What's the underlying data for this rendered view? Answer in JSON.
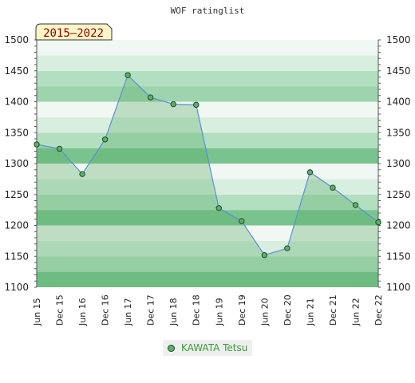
{
  "chart_data": {
    "type": "area",
    "title": "WOF ratinglist",
    "badge": "2015–2022",
    "xlabel": "",
    "ylabel": "",
    "ylim": [
      1100,
      1500
    ],
    "yticks": [
      1100,
      1150,
      1200,
      1250,
      1300,
      1350,
      1400,
      1450,
      1500
    ],
    "x": [
      "Jun 15",
      "Dec 15",
      "Jun 16",
      "Dec 16",
      "Jun 17",
      "Dec 17",
      "Jun 18",
      "Dec 18",
      "Jun 19",
      "Dec 19",
      "Jun 20",
      "Dec 20",
      "Jun 21",
      "Dec 21",
      "Jun 22",
      "Dec 22"
    ],
    "series": [
      {
        "name": "KAWATA Tetsu",
        "values": [
          1331,
          1324,
          1283,
          1339,
          1443,
          1407,
          1396,
          1395,
          1228,
          1207,
          1152,
          1163,
          1286,
          1261,
          1233,
          1205
        ]
      }
    ],
    "grid": true,
    "legend_position": "bottom",
    "colors": {
      "band_dark": "#79c38f",
      "band_mid": "#9dd3ad",
      "band_light": "#b3dfc1",
      "band_pale": "#d8efe0",
      "band_white": "#f1f8f3",
      "area_fill": "#5fae6a",
      "line": "#5b8fd6",
      "marker": "#5fae6a",
      "badge_bg": "#fff6c8",
      "badge_text": "#8b0000"
    }
  }
}
